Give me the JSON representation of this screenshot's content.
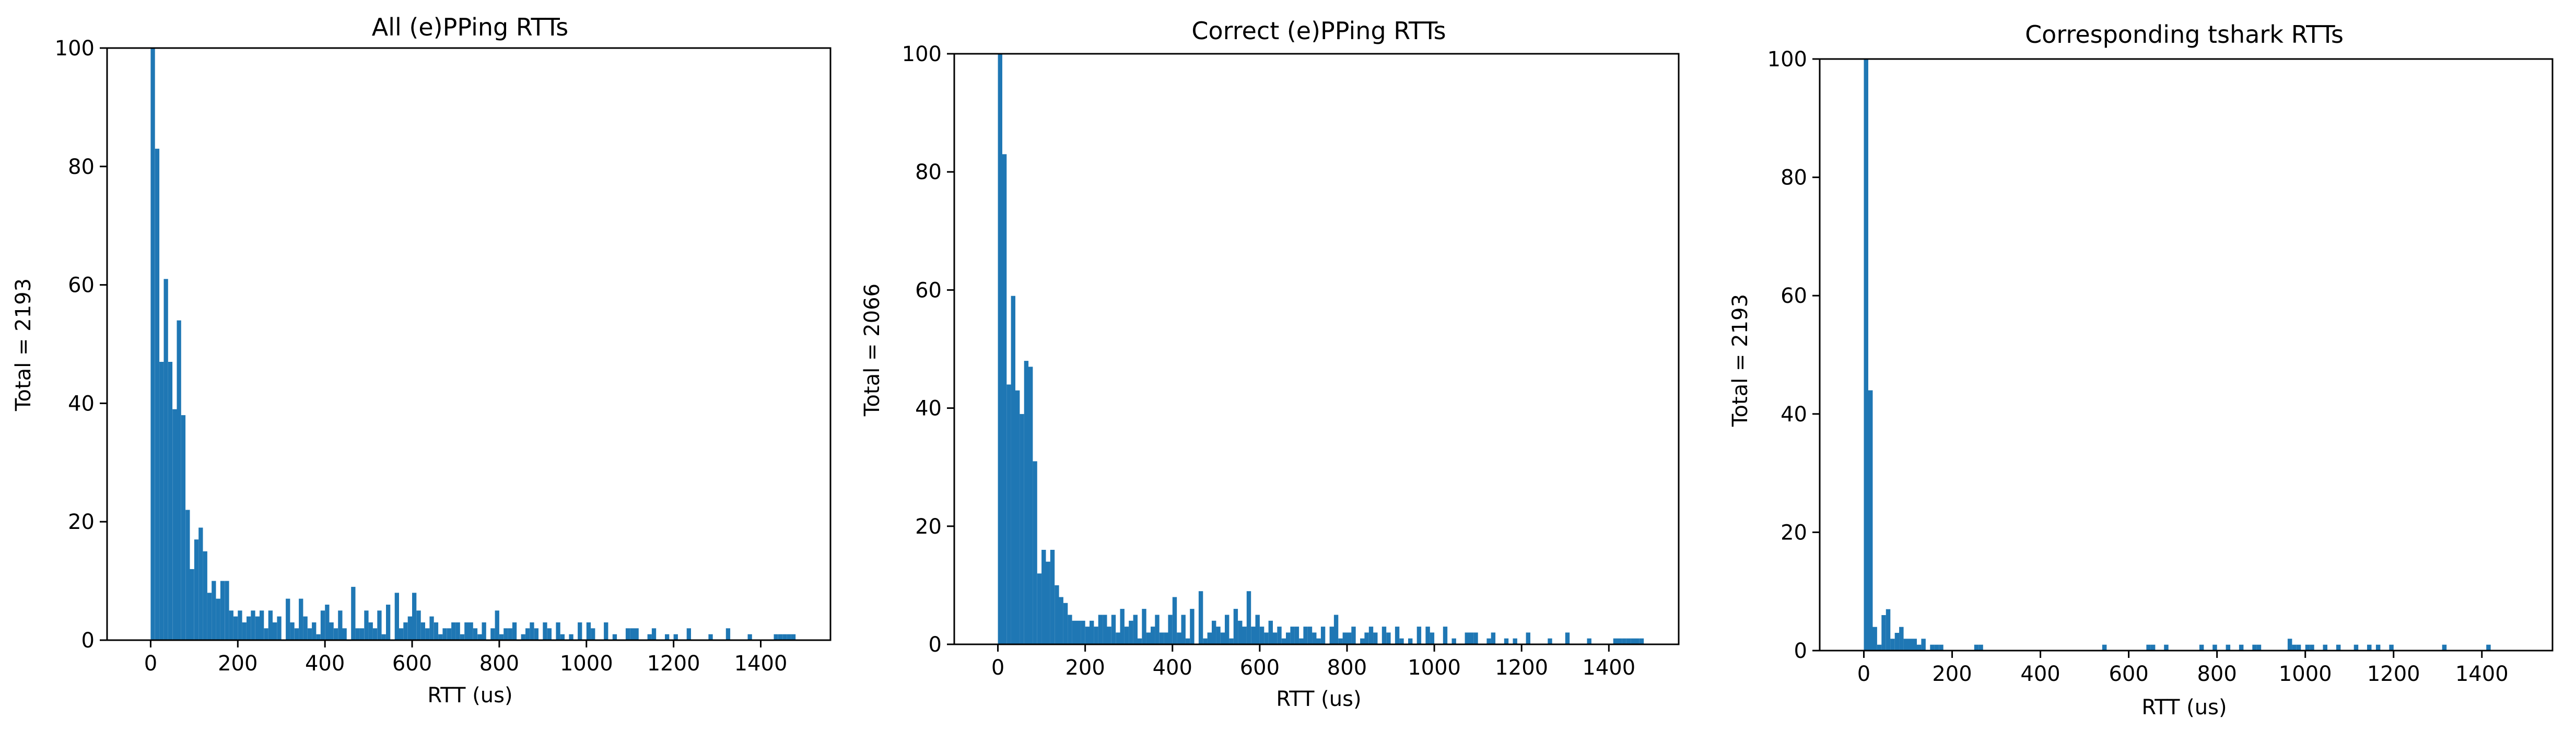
{
  "figure": {
    "bar_color": "#1f77b4"
  },
  "chart_data": [
    {
      "type": "bar",
      "title": "All (e)PPing RTTs",
      "xlabel": "RTT (us)",
      "ylabel": "Total = 2193",
      "xlim": [
        -100,
        1560
      ],
      "ylim": [
        0,
        100
      ],
      "xticks": [
        "0",
        "200",
        "400",
        "600",
        "800",
        "1000",
        "1200",
        "1400"
      ],
      "yticks": [
        "0",
        "20",
        "40",
        "60",
        "80",
        "100"
      ],
      "grid": false,
      "bin_width": 10,
      "x": [
        0,
        10,
        20,
        30,
        40,
        50,
        60,
        70,
        80,
        90,
        100,
        110,
        120,
        130,
        140,
        150,
        160,
        170,
        180,
        190,
        200,
        210,
        220,
        230,
        240,
        250,
        260,
        270,
        280,
        290,
        300,
        310,
        320,
        330,
        340,
        350,
        360,
        370,
        380,
        390,
        400,
        410,
        420,
        430,
        440,
        450,
        460,
        470,
        480,
        490,
        500,
        510,
        520,
        530,
        540,
        550,
        560,
        570,
        580,
        590,
        600,
        610,
        620,
        630,
        640,
        650,
        660,
        670,
        680,
        690,
        700,
        710,
        720,
        730,
        740,
        750,
        760,
        770,
        780,
        790,
        800,
        810,
        820,
        830,
        840,
        850,
        860,
        870,
        880,
        890,
        900,
        910,
        920,
        930,
        940,
        950,
        960,
        970,
        980,
        990,
        1000,
        1010,
        1020,
        1030,
        1040,
        1050,
        1060,
        1070,
        1080,
        1090,
        1100,
        1110,
        1120,
        1130,
        1140,
        1150,
        1160,
        1170,
        1180,
        1190,
        1200,
        1210,
        1220,
        1230,
        1240,
        1250,
        1260,
        1270,
        1280,
        1290,
        1300,
        1310,
        1320,
        1330,
        1340,
        1350,
        1360,
        1370,
        1380,
        1390,
        1400,
        1410,
        1420,
        1430,
        1440,
        1450,
        1460,
        1470
      ],
      "values": [
        100,
        83,
        47,
        61,
        47,
        39,
        54,
        38,
        22,
        12,
        17,
        19,
        15,
        8,
        10,
        7,
        10,
        10,
        5,
        4,
        5,
        3,
        4,
        5,
        4,
        5,
        2,
        5,
        3,
        4,
        0,
        7,
        3,
        2,
        7,
        4,
        2,
        3,
        1,
        5,
        6,
        3,
        2,
        5,
        2,
        0,
        9,
        2,
        2,
        5,
        3,
        2,
        5,
        1,
        6,
        0,
        8,
        2,
        3,
        4,
        8,
        5,
        3,
        2,
        4,
        3,
        1,
        2,
        2,
        3,
        3,
        1,
        3,
        3,
        2,
        1,
        3,
        0,
        2,
        5,
        1,
        2,
        2,
        3,
        0,
        1,
        2,
        3,
        2,
        0,
        3,
        2,
        0,
        3,
        1,
        0,
        1,
        0,
        3,
        0,
        3,
        2,
        0,
        0,
        3,
        0,
        1,
        0,
        0,
        2,
        2,
        2,
        0,
        0,
        1,
        2,
        0,
        0,
        1,
        0,
        1,
        0,
        0,
        2,
        0,
        0,
        0,
        0,
        1,
        0,
        0,
        0,
        2,
        0,
        0,
        0,
        0,
        1,
        0,
        0,
        0,
        0,
        0,
        1,
        1,
        1,
        1,
        1
      ]
    },
    {
      "type": "bar",
      "title": "Correct (e)PPing RTTs",
      "xlabel": "RTT (us)",
      "ylabel": "Total = 2066",
      "xlim": [
        -100,
        1560
      ],
      "ylim": [
        0,
        100
      ],
      "xticks": [
        "0",
        "200",
        "400",
        "600",
        "800",
        "1000",
        "1200",
        "1400"
      ],
      "yticks": [
        "0",
        "20",
        "40",
        "60",
        "80",
        "100"
      ],
      "grid": false,
      "bin_width": 10,
      "x": [
        0,
        10,
        20,
        30,
        40,
        50,
        60,
        70,
        80,
        90,
        100,
        110,
        120,
        130,
        140,
        150,
        160,
        170,
        180,
        190,
        200,
        210,
        220,
        230,
        240,
        250,
        260,
        270,
        280,
        290,
        300,
        310,
        320,
        330,
        340,
        350,
        360,
        370,
        380,
        390,
        400,
        410,
        420,
        430,
        440,
        450,
        460,
        470,
        480,
        490,
        500,
        510,
        520,
        530,
        540,
        550,
        560,
        570,
        580,
        590,
        600,
        610,
        620,
        630,
        640,
        650,
        660,
        670,
        680,
        690,
        700,
        710,
        720,
        730,
        740,
        750,
        760,
        770,
        780,
        790,
        800,
        810,
        820,
        830,
        840,
        850,
        860,
        870,
        880,
        890,
        900,
        910,
        920,
        930,
        940,
        950,
        960,
        970,
        980,
        990,
        1000,
        1010,
        1020,
        1030,
        1040,
        1050,
        1060,
        1070,
        1080,
        1090,
        1100,
        1110,
        1120,
        1130,
        1140,
        1150,
        1160,
        1170,
        1180,
        1190,
        1200,
        1210,
        1220,
        1230,
        1240,
        1250,
        1260,
        1270,
        1280,
        1290,
        1300,
        1310,
        1320,
        1330,
        1340,
        1350,
        1360,
        1370,
        1380,
        1390,
        1400,
        1410,
        1420,
        1430,
        1440,
        1450,
        1460,
        1470
      ],
      "values": [
        100,
        83,
        44,
        59,
        43,
        39,
        48,
        47,
        31,
        12,
        16,
        14,
        16,
        10,
        8,
        7,
        5,
        4,
        4,
        4,
        3,
        4,
        3,
        5,
        5,
        3,
        5,
        2,
        6,
        3,
        4,
        5,
        1,
        6,
        2,
        3,
        5,
        2,
        2,
        5,
        8,
        2,
        5,
        1,
        6,
        0,
        9,
        1,
        2,
        4,
        3,
        2,
        5,
        1,
        6,
        4,
        3,
        9,
        3,
        5,
        3,
        2,
        4,
        2,
        3,
        1,
        2,
        3,
        3,
        1,
        3,
        3,
        2,
        1,
        3,
        0,
        3,
        5,
        1,
        2,
        2,
        3,
        0,
        1,
        2,
        3,
        2,
        0,
        3,
        2,
        0,
        3,
        1,
        0,
        1,
        0,
        3,
        0,
        3,
        2,
        0,
        0,
        3,
        0,
        1,
        0,
        0,
        2,
        2,
        2,
        0,
        0,
        1,
        2,
        0,
        0,
        1,
        0,
        1,
        0,
        0,
        2,
        0,
        0,
        0,
        0,
        1,
        0,
        0,
        0,
        2,
        0,
        0,
        0,
        0,
        1,
        0,
        0,
        0,
        0,
        0,
        1,
        1,
        1,
        1,
        1,
        1,
        1
      ]
    },
    {
      "type": "bar",
      "title": "Corresponding tshark RTTs",
      "xlabel": "RTT (us)",
      "ylabel": "Total = 2193",
      "xlim": [
        -100,
        1560
      ],
      "ylim": [
        0,
        100
      ],
      "xticks": [
        "0",
        "200",
        "400",
        "600",
        "800",
        "1000",
        "1200",
        "1400"
      ],
      "yticks": [
        "0",
        "20",
        "40",
        "60",
        "80",
        "100"
      ],
      "grid": false,
      "bin_width": 10,
      "x": [
        0,
        10,
        20,
        30,
        40,
        50,
        60,
        70,
        80,
        90,
        100,
        110,
        120,
        130,
        140,
        150,
        160,
        170,
        250,
        260,
        540,
        640,
        650,
        680,
        760,
        790,
        820,
        850,
        880,
        890,
        960,
        970,
        980,
        1000,
        1010,
        1040,
        1070,
        1110,
        1140,
        1160,
        1190,
        1310,
        1410
      ],
      "values": [
        100,
        44,
        4,
        1,
        6,
        7,
        2,
        3,
        4,
        2,
        2,
        2,
        1,
        2,
        0,
        1,
        1,
        1,
        1,
        1,
        1,
        1,
        1,
        1,
        1,
        1,
        1,
        1,
        1,
        1,
        2,
        1,
        1,
        1,
        1,
        1,
        1,
        1,
        1,
        1,
        1,
        1,
        1
      ]
    }
  ]
}
